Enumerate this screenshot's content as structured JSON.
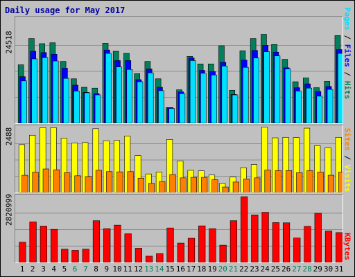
{
  "chart_data": {
    "title": "Daily usage for May 2017",
    "x_tick_labels": [
      "1",
      "2",
      "3",
      "4",
      "5",
      "6",
      "7",
      "8",
      "9",
      "10",
      "11",
      "12",
      "13",
      "14",
      "15",
      "16",
      "17",
      "18",
      "19",
      "20",
      "21",
      "22",
      "23",
      "24",
      "25",
      "26",
      "27",
      "28",
      "29",
      "30",
      "31"
    ],
    "weekend_days": [
      "6",
      "7",
      "13",
      "14",
      "20",
      "21",
      "27",
      "28"
    ],
    "colors": {
      "hits": "#00805c",
      "files": "#0000ff",
      "pages": "#00e0ff",
      "visits": "#ffff00",
      "sites": "#ff8000",
      "kbytes": "#ff0000",
      "weekday_label": "#000000",
      "weekend_label": "#00805c",
      "title": "#0000a0"
    },
    "charts": [
      {
        "type": "bar",
        "panel": "top",
        "ymax_label": "24518",
        "ylim": [
          0,
          24518
        ],
        "right_label_parts": [
          {
            "text": "Pages",
            "color": "#00e0ff"
          },
          {
            "text": " / ",
            "color": "#000000"
          },
          {
            "text": "Files",
            "color": "#0000ff"
          },
          {
            "text": " / ",
            "color": "#000000"
          },
          {
            "text": "Hits",
            "color": "#00805c"
          }
        ],
        "series": [
          {
            "name": "Hits",
            "values": [
              13800,
              20000,
              18800,
              19000,
              14600,
              10500,
              8500,
              8300,
              18900,
              17000,
              16500,
              11700,
              14600,
              10500,
              3700,
              7900,
              15800,
              14000,
              14000,
              18300,
              7800,
              17100,
              20000,
              21000,
              18600,
              15100,
              9800,
              10700,
              8400,
              9900,
              20700
            ]
          },
          {
            "name": "Files",
            "values": [
              11000,
              17000,
              16700,
              16300,
              13000,
              9000,
              7300,
              7000,
              17300,
              14800,
              14800,
              10300,
              12800,
              8500,
              3700,
              7400,
              15400,
              12500,
              12200,
              14400,
              6800,
              14900,
              17200,
              18400,
              16800,
              13100,
              8400,
              9300,
              7500,
              8700,
              17400
            ]
          },
          {
            "name": "Pages",
            "values": [
              10000,
              15200,
              15500,
              14700,
              10600,
              7600,
              7200,
              6700,
              16500,
              13300,
              12700,
              9800,
              11900,
              7700,
              3500,
              7000,
              14800,
              11800,
              11400,
              13500,
              6700,
              13200,
              15400,
              16900,
              15900,
              12800,
              7600,
              8300,
              6400,
              8000,
              16500
            ]
          }
        ]
      },
      {
        "type": "bar",
        "panel": "middle",
        "ymax_label": "2488",
        "ylim": [
          0,
          2488
        ],
        "right_label_parts": [
          {
            "text": "Sites",
            "color": "#ff8000"
          },
          {
            "text": " / ",
            "color": "#000000"
          },
          {
            "text": "Visits",
            "color": "#ffff00"
          }
        ],
        "series": [
          {
            "name": "Visits",
            "values": [
              1830,
              2190,
              2480,
              2480,
              2080,
              1890,
              1910,
              2440,
              1980,
              1990,
              2160,
              1410,
              710,
              780,
              2030,
              1210,
              850,
              830,
              670,
              350,
              590,
              950,
              1070,
              2500,
              2090,
              2110,
              2100,
              2460,
              1790,
              1710,
              2110
            ]
          },
          {
            "name": "Sites",
            "values": [
              660,
              780,
              900,
              870,
              760,
              640,
              610,
              850,
              800,
              790,
              800,
              550,
              350,
              420,
              690,
              560,
              580,
              580,
              490,
              210,
              400,
              520,
              560,
              860,
              840,
              840,
              760,
              840,
              780,
              660,
              780
            ]
          }
        ]
      },
      {
        "type": "bar",
        "panel": "bottom",
        "ymax_label": "2820999",
        "ylim": [
          0,
          2820999
        ],
        "right_label_parts": [
          {
            "text": "KBytes",
            "color": "#ff0000"
          }
        ],
        "series": [
          {
            "name": "KBytes",
            "values": [
              870000,
              1740000,
              1560000,
              1420000,
              570000,
              520000,
              570000,
              1790000,
              1450000,
              1600000,
              1230000,
              610000,
              270000,
              380000,
              1480000,
              830000,
              1040000,
              1570000,
              1450000,
              740000,
              1790000,
              2820000,
              2040000,
              2150000,
              1710000,
              1700000,
              1050000,
              1550000,
              2110000,
              1350000,
              1280000
            ]
          }
        ]
      }
    ]
  }
}
